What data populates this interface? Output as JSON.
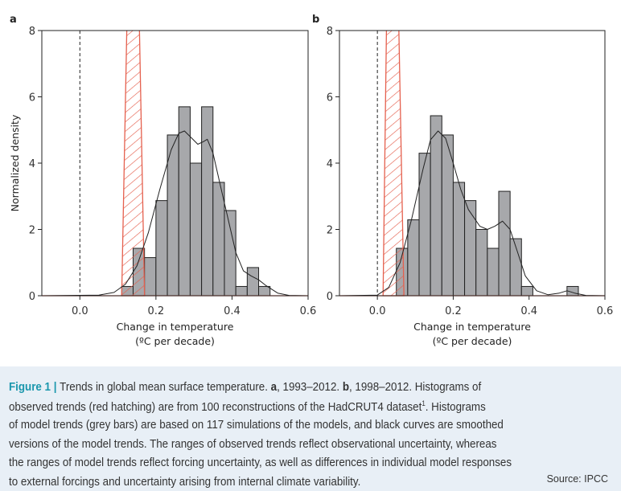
{
  "colors": {
    "bars": "#a7a8ab",
    "hatch": "#e5604e",
    "curve": "#222222",
    "caption_bg": "#e8eff6",
    "figure_label": "#1b97ad"
  },
  "chart_data": [
    {
      "panel": "a",
      "type": "bar",
      "xlabel": "Change in temperature",
      "xlabel_unit": "(ºC per decade)",
      "ylabel": "Normalized density",
      "xlim": [
        -0.1,
        0.6
      ],
      "ylim": [
        0,
        8
      ],
      "xticks": [
        "0.0",
        "0.2",
        "0.4",
        "0.6"
      ],
      "yticks": [
        "0",
        "2",
        "4",
        "6",
        "8"
      ],
      "bin_width": 0.03,
      "bins_start": [
        0.11,
        0.14,
        0.17,
        0.2,
        0.23,
        0.26,
        0.29,
        0.32,
        0.35,
        0.38,
        0.41,
        0.44,
        0.47
      ],
      "values": [
        0.28,
        1.43,
        1.15,
        2.87,
        4.85,
        5.7,
        4.0,
        5.7,
        3.42,
        2.57,
        0.28,
        0.85,
        0.28
      ],
      "smoothed_curve": [
        [
          -0.1,
          0
        ],
        [
          0.05,
          0.02
        ],
        [
          0.09,
          0.1
        ],
        [
          0.12,
          0.35
        ],
        [
          0.15,
          0.9
        ],
        [
          0.18,
          1.9
        ],
        [
          0.21,
          3.2
        ],
        [
          0.24,
          4.4
        ],
        [
          0.26,
          4.9
        ],
        [
          0.275,
          4.97
        ],
        [
          0.29,
          4.8
        ],
        [
          0.31,
          4.57
        ],
        [
          0.325,
          4.65
        ],
        [
          0.335,
          4.72
        ],
        [
          0.35,
          4.3
        ],
        [
          0.37,
          3.3
        ],
        [
          0.39,
          2.3
        ],
        [
          0.41,
          1.3
        ],
        [
          0.43,
          0.75
        ],
        [
          0.45,
          0.6
        ],
        [
          0.47,
          0.48
        ],
        [
          0.49,
          0.3
        ],
        [
          0.52,
          0.08
        ],
        [
          0.55,
          0.01
        ],
        [
          0.6,
          0
        ]
      ],
      "observed_range": {
        "base": [
          0.11,
          0.17
        ],
        "top": [
          0.125,
          0.155
        ]
      },
      "zero_line": 0.0
    },
    {
      "panel": "b",
      "type": "bar",
      "xlabel": "Change in temperature",
      "xlabel_unit": "(ºC per decade)",
      "ylabel": "",
      "xlim": [
        -0.1,
        0.6
      ],
      "ylim": [
        0,
        8
      ],
      "xticks": [
        "0.0",
        "0.2",
        "0.4",
        "0.6"
      ],
      "yticks": [
        "0",
        "2",
        "4",
        "6",
        "8"
      ],
      "bin_width": 0.03,
      "bins_start": [
        0.05,
        0.08,
        0.11,
        0.14,
        0.17,
        0.2,
        0.23,
        0.26,
        0.29,
        0.32,
        0.35,
        0.38,
        0.5
      ],
      "values": [
        1.43,
        2.29,
        4.3,
        5.43,
        4.85,
        3.42,
        2.87,
        2.0,
        1.43,
        3.15,
        1.72,
        0.28,
        0.28
      ],
      "smoothed_curve": [
        [
          -0.1,
          0
        ],
        [
          0.0,
          0.02
        ],
        [
          0.03,
          0.25
        ],
        [
          0.06,
          1.0
        ],
        [
          0.09,
          2.3
        ],
        [
          0.12,
          3.8
        ],
        [
          0.14,
          4.7
        ],
        [
          0.16,
          4.97
        ],
        [
          0.18,
          4.75
        ],
        [
          0.2,
          4.0
        ],
        [
          0.22,
          3.2
        ],
        [
          0.24,
          2.6
        ],
        [
          0.27,
          2.1
        ],
        [
          0.29,
          2.0
        ],
        [
          0.31,
          2.1
        ],
        [
          0.33,
          2.25
        ],
        [
          0.35,
          2.0
        ],
        [
          0.37,
          1.3
        ],
        [
          0.39,
          0.6
        ],
        [
          0.42,
          0.15
        ],
        [
          0.45,
          0.03
        ],
        [
          0.48,
          0.08
        ],
        [
          0.5,
          0.15
        ],
        [
          0.52,
          0.08
        ],
        [
          0.55,
          0.01
        ],
        [
          0.6,
          0
        ]
      ],
      "observed_range": {
        "base": [
          0.015,
          0.07
        ],
        "top": [
          0.025,
          0.055
        ]
      },
      "zero_line": 0.0
    }
  ],
  "caption": {
    "lines": [
      [
        {
          "t": "Figure 1 | ",
          "c": "figlabel"
        },
        {
          "t": "Trends in global mean surface temperature. "
        },
        {
          "t": "a",
          "c": "b"
        },
        {
          "t": ", 1993–2012. "
        },
        {
          "t": "b",
          "c": "b"
        },
        {
          "t": ", 1998–2012. Histograms of"
        }
      ],
      [
        {
          "t": "observed trends (red hatching) are from 100 reconstructions of the HadCRUT4 dataset"
        },
        {
          "t": "1",
          "c": "sup"
        },
        {
          "t": ". Histograms"
        }
      ],
      [
        {
          "t": "of model trends (grey bars) are based on 117 simulations of the models, and black curves are smoothed"
        }
      ],
      [
        {
          "t": "versions of the model trends. The ranges of observed trends reflect observational uncertainty, whereas"
        }
      ],
      [
        {
          "t": "the ranges of model trends reflect forcing uncertainty, as well as differences in individual model responses"
        }
      ],
      [
        {
          "t": "to external forcings and uncertainty arising from internal climate variability."
        }
      ]
    ],
    "source": "Source: IPCC"
  }
}
